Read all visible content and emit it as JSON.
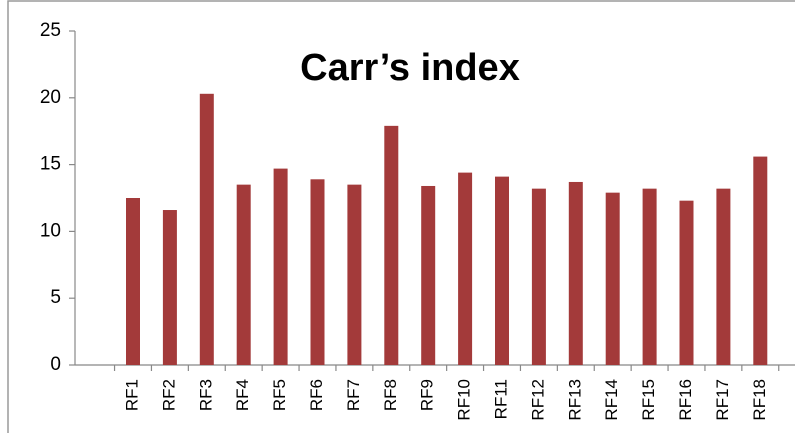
{
  "chart_data": {
    "type": "bar",
    "title": "Carr’s index",
    "categories": [
      "RF1",
      "RF2",
      "RF3",
      "RF4",
      "RF5",
      "RF6",
      "RF7",
      "RF8",
      "RF9",
      "RF10",
      "RF11",
      "RF12",
      "RF13",
      "RF14",
      "RF15",
      "RF16",
      "RF17",
      "RF18"
    ],
    "values": [
      12.5,
      11.6,
      20.3,
      13.5,
      14.7,
      13.9,
      13.5,
      17.9,
      13.4,
      14.4,
      14.1,
      13.2,
      13.7,
      12.9,
      13.2,
      12.3,
      13.2,
      15.6
    ],
    "color": "#a33a3a",
    "ylim": [
      0,
      25
    ],
    "yticks": [
      0,
      5,
      10,
      15,
      20,
      25
    ],
    "grid": false
  }
}
